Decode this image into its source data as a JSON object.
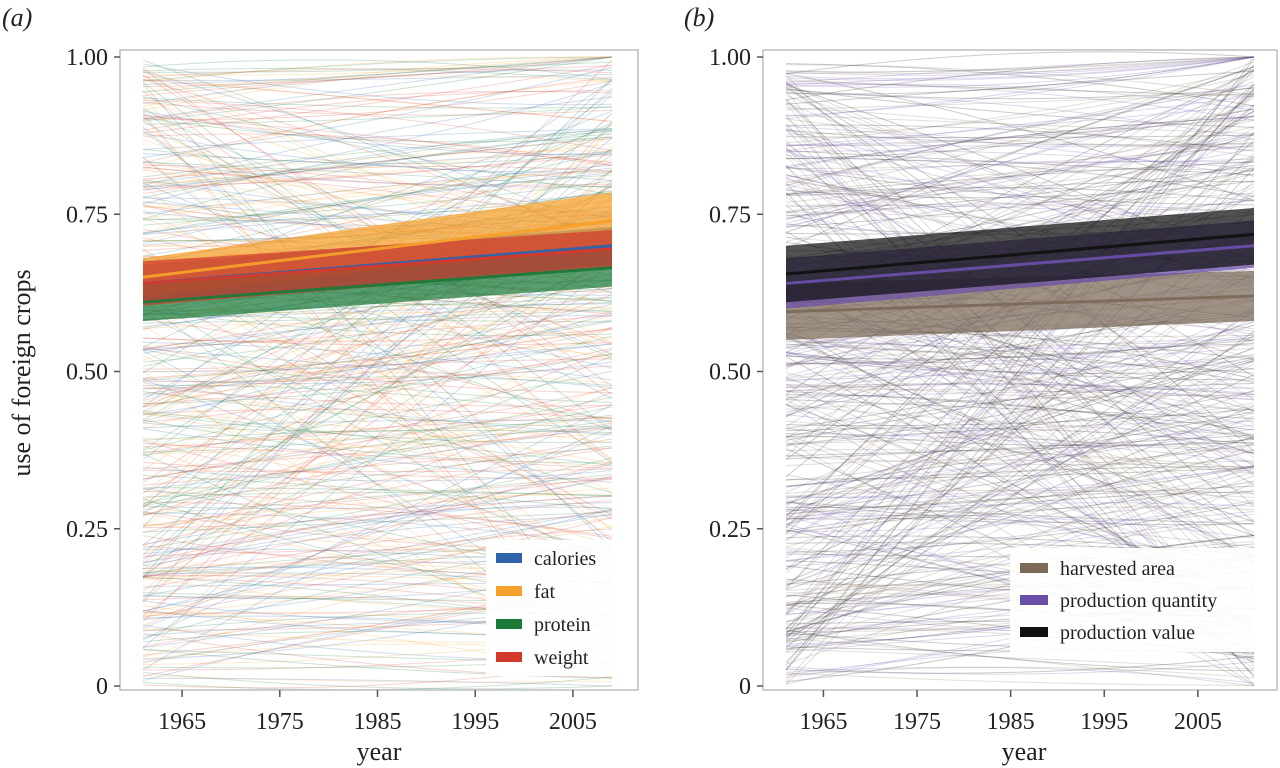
{
  "figure": {
    "ylabel": "use of foreign crops"
  },
  "chart_data": [
    {
      "type": "line",
      "panel_label": "(a)",
      "xlabel": "year",
      "ylabel": "use of foreign crops",
      "xlim": [
        1961,
        2009
      ],
      "ylim": [
        0,
        1
      ],
      "x_ticks": [
        "1965",
        "1975",
        "1985",
        "1995",
        "2005"
      ],
      "y_ticks": [
        "0",
        "0.25",
        "0.50",
        "0.75",
        "1.00"
      ],
      "legend_position": "bottom-right",
      "grid": false,
      "series": [
        {
          "name": "calories",
          "color": "#2f63a8",
          "x": [
            1961,
            2009
          ],
          "values": [
            0.64,
            0.7
          ],
          "band_low": [
            0.61,
            0.67
          ],
          "band_high": [
            0.67,
            0.73
          ]
        },
        {
          "name": "fat",
          "color": "#f5a02a",
          "x": [
            1961,
            2009
          ],
          "values": [
            0.65,
            0.74
          ],
          "band_low": [
            0.62,
            0.7
          ],
          "band_high": [
            0.68,
            0.785
          ]
        },
        {
          "name": "protein",
          "color": "#1b7a3a",
          "x": [
            1961,
            2009
          ],
          "values": [
            0.61,
            0.665
          ],
          "band_low": [
            0.58,
            0.635
          ],
          "band_high": [
            0.64,
            0.695
          ]
        },
        {
          "name": "weight",
          "color": "#d33a2c",
          "x": [
            1961,
            2009
          ],
          "values": [
            0.64,
            0.695
          ],
          "band_low": [
            0.605,
            0.665
          ],
          "band_high": [
            0.675,
            0.725
          ]
        }
      ]
    },
    {
      "type": "line",
      "panel_label": "(b)",
      "xlabel": "year",
      "xlim": [
        1961,
        2011
      ],
      "ylim": [
        0,
        1
      ],
      "x_ticks": [
        "1965",
        "1975",
        "1985",
        "1995",
        "2005"
      ],
      "y_ticks": [
        "0",
        "0.25",
        "0.50",
        "0.75",
        "1.00"
      ],
      "legend_position": "bottom-right",
      "grid": false,
      "series": [
        {
          "name": "harvested area",
          "color": "#7b6a58",
          "x": [
            1961,
            2011
          ],
          "values": [
            0.595,
            0.62
          ],
          "band_low": [
            0.55,
            0.58
          ],
          "band_high": [
            0.64,
            0.66
          ]
        },
        {
          "name": "production quantity",
          "color": "#6a4fa8",
          "x": [
            1961,
            2011
          ],
          "values": [
            0.64,
            0.7
          ],
          "band_low": [
            0.6,
            0.665
          ],
          "band_high": [
            0.68,
            0.74
          ]
        },
        {
          "name": "production value",
          "color": "#111111",
          "x": [
            1961,
            2011
          ],
          "values": [
            0.655,
            0.718
          ],
          "band_low": [
            0.61,
            0.67
          ],
          "band_high": [
            0.7,
            0.76
          ]
        }
      ]
    }
  ]
}
